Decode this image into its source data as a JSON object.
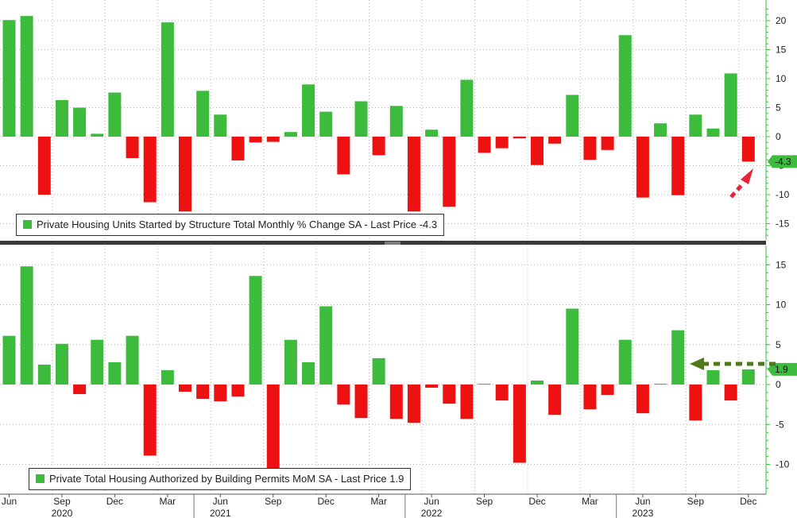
{
  "chart_data": [
    {
      "type": "bar",
      "legend": "Private Housing Units Started by Structure Total Monthly % Change SA - Last Price -4.3",
      "last_price_label": "-4.3",
      "ylim": [
        -18,
        22
      ],
      "yticks": [
        20,
        15,
        10,
        5,
        0,
        -5,
        -10,
        -15
      ],
      "ytick_labels": [
        "20",
        "15",
        "10",
        "5",
        "0",
        "-5",
        "-10",
        "-15"
      ],
      "values": [
        20.1,
        20.8,
        -10.0,
        6.3,
        5.0,
        0.5,
        7.6,
        -3.7,
        -11.3,
        19.7,
        -12.9,
        7.9,
        3.8,
        -4.1,
        -1.0,
        -0.9,
        0.8,
        9.0,
        4.3,
        -6.5,
        6.1,
        -3.2,
        5.3,
        -12.9,
        1.2,
        -12.1,
        9.8,
        -2.8,
        -2.0,
        -0.3,
        -4.9,
        -1.2,
        7.2,
        -4.0,
        -2.3,
        17.5,
        -10.5,
        2.3,
        -10.1,
        3.8,
        1.4,
        10.9,
        -4.3
      ],
      "positive_color": "#3dbb3d",
      "negative_color": "#ee1111",
      "arrow_color": "#e8243a",
      "legend_position": "bottom-left"
    },
    {
      "type": "bar",
      "legend": "Private Total Housing Authorized by Building Permits MoM SA - Last Price 1.9",
      "last_price_label": "1.9",
      "ylim": [
        -13,
        16
      ],
      "yticks": [
        15,
        10,
        5,
        0,
        -5,
        -10
      ],
      "ytick_labels": [
        "15",
        "10",
        "5",
        "0",
        "-5",
        "-10"
      ],
      "values": [
        6.1,
        14.8,
        2.5,
        5.1,
        -1.2,
        5.6,
        2.8,
        6.1,
        -8.9,
        1.8,
        -0.9,
        -1.8,
        -2.1,
        -1.5,
        13.6,
        -11.0,
        5.6,
        2.8,
        9.8,
        -2.5,
        -4.2,
        3.3,
        -4.3,
        -4.8,
        -0.4,
        -2.4,
        -4.3,
        0.1,
        -2.0,
        -9.8,
        0.5,
        -3.8,
        9.5,
        -3.1,
        -1.3,
        5.6,
        -3.6,
        0.1,
        6.8,
        -4.5,
        1.8,
        -2.0,
        1.9
      ],
      "positive_color": "#3dbb3d",
      "negative_color": "#ee1111",
      "arrow_color": "#4e7a1a",
      "legend_position": "bottom-left"
    }
  ],
  "x_axis": {
    "month_labels": [
      "Jun",
      "Sep",
      "Dec",
      "Mar",
      "Jun",
      "Sep",
      "Dec",
      "Mar",
      "Jun",
      "Sep",
      "Dec",
      "Mar",
      "Jun",
      "Sep",
      "Dec"
    ],
    "month_label_bar_index": [
      0,
      3,
      6,
      9,
      12,
      15,
      18,
      21,
      24,
      27,
      30,
      33,
      36,
      39,
      42
    ],
    "year_labels": [
      "2020",
      "2021",
      "2022",
      "2023"
    ],
    "year_label_bar_index": [
      3,
      12,
      24,
      36
    ]
  }
}
